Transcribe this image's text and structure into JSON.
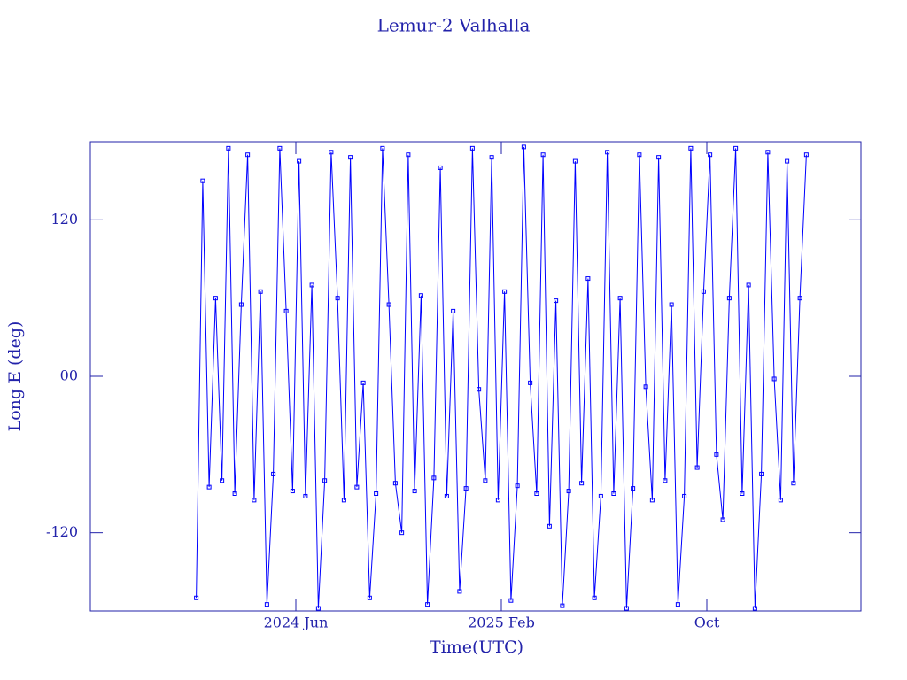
{
  "chart_data": {
    "type": "line",
    "title": "Lemur-2 Valhalla",
    "x_label": "Time(UTC)",
    "y_label": "Long E (deg)",
    "xlim": [
      "2023-10",
      "2026-04"
    ],
    "xticks": [
      {
        "value": "2024-06",
        "label": "2024 Jun"
      },
      {
        "value": "2025-02",
        "label": "2025 Feb"
      },
      {
        "value": "2025-10",
        "label": "Oct"
      }
    ],
    "ylim": [
      -180,
      180
    ],
    "yticks": [
      -120,
      {
        "value": 0,
        "label": "00"
      },
      120
    ],
    "series": [
      {
        "name": "Long E",
        "color": "#0000ff",
        "x": [
          "2024-02",
          "2024-02",
          "2024-02",
          "2024-02",
          "2024-03",
          "2024-03",
          "2024-03",
          "2024-03",
          "2024-04",
          "2024-04",
          "2024-04",
          "2024-04",
          "2024-05",
          "2024-05",
          "2024-05",
          "2024-05",
          "2024-06",
          "2024-06",
          "2024-06",
          "2024-06",
          "2024-07",
          "2024-07",
          "2024-07",
          "2024-07",
          "2024-08",
          "2024-08",
          "2024-08",
          "2024-08",
          "2024-09",
          "2024-09",
          "2024-09",
          "2024-09",
          "2024-10",
          "2024-10",
          "2024-10",
          "2024-10",
          "2024-11",
          "2024-11",
          "2024-11",
          "2024-11",
          "2024-12",
          "2024-12",
          "2024-12",
          "2024-12",
          "2025-01",
          "2025-01",
          "2025-01",
          "2025-01",
          "2025-02",
          "2025-02",
          "2025-02",
          "2025-02",
          "2025-03",
          "2025-03",
          "2025-03",
          "2025-03",
          "2025-04",
          "2025-04",
          "2025-04",
          "2025-04",
          "2025-05",
          "2025-05",
          "2025-05",
          "2025-05",
          "2025-06",
          "2025-06",
          "2025-06",
          "2025-06",
          "2025-07",
          "2025-07",
          "2025-07",
          "2025-07",
          "2025-08",
          "2025-08",
          "2025-08",
          "2025-08",
          "2025-09",
          "2025-09",
          "2025-09",
          "2025-09",
          "2025-10",
          "2025-10",
          "2025-10",
          "2025-10",
          "2025-11",
          "2025-11",
          "2025-11",
          "2025-11",
          "2025-12",
          "2025-12",
          "2025-12",
          "2025-12",
          "2026-01",
          "2026-01",
          "2026-01",
          "2026-01"
        ],
        "values": [
          -170,
          150,
          -85,
          60,
          -80,
          175,
          -90,
          55,
          170,
          -95,
          65,
          -175,
          -75,
          175,
          50,
          -88,
          165,
          -92,
          70,
          -178,
          -80,
          172,
          60,
          -95,
          168,
          -85,
          -5,
          -170,
          -90,
          175,
          55,
          -82,
          -120,
          170,
          -88,
          62,
          -175,
          -78,
          160,
          -92,
          50,
          -165,
          -86,
          175,
          -10,
          -80,
          168,
          -95,
          65,
          -172,
          -84,
          176,
          -5,
          -90,
          170,
          -115,
          58,
          -176,
          -88,
          165,
          -82,
          75,
          -170,
          -92,
          172,
          -90,
          60,
          -178,
          -86,
          170,
          -8,
          -95,
          168,
          -80,
          55,
          -175,
          -92,
          175,
          -70,
          65,
          170,
          -60,
          -110,
          60,
          175,
          -90,
          70,
          -178,
          -75,
          172,
          -2,
          -95,
          165,
          -82,
          60,
          170
        ]
      }
    ]
  }
}
